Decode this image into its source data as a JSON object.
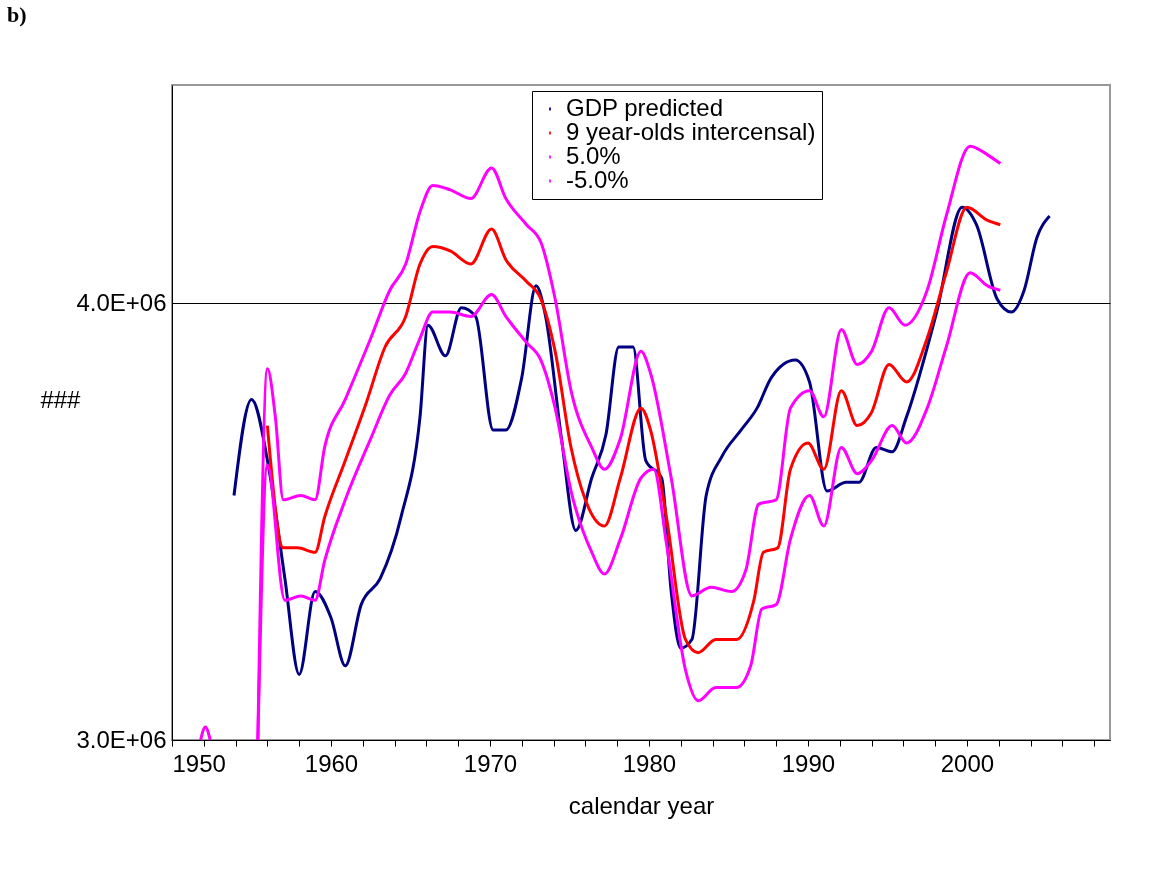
{
  "chart_data": {
    "type": "line",
    "title": "b)",
    "xlabel": "calendar year",
    "ylabel": "###",
    "legend": "top right",
    "grid": "y",
    "xlim": [
      1950,
      2009
    ],
    "xticks": [
      1950,
      {
        "value": 1952,
        "label": null
      },
      {
        "value": 1954,
        "label": null
      },
      {
        "value": 1956,
        "label": null
      },
      {
        "value": 1958,
        "label": null
      },
      1960,
      {
        "value": 1962,
        "label": null
      },
      {
        "value": 1964,
        "label": null
      },
      {
        "value": 1966,
        "label": null
      },
      {
        "value": 1968,
        "label": null
      },
      1970,
      {
        "value": 1972,
        "label": null
      },
      {
        "value": 1974,
        "label": null
      },
      {
        "value": 1976,
        "label": null
      },
      {
        "value": 1978,
        "label": null
      },
      1980,
      {
        "value": 1982,
        "label": null
      },
      {
        "value": 1984,
        "label": null
      },
      {
        "value": 1986,
        "label": null
      },
      {
        "value": 1988,
        "label": null
      },
      1990,
      {
        "value": 1992,
        "label": null
      },
      {
        "value": 1994,
        "label": null
      },
      {
        "value": 1996,
        "label": null
      },
      {
        "value": 1998,
        "label": null
      },
      2000,
      {
        "value": 2002,
        "label": null
      },
      {
        "value": 2004,
        "label": null
      },
      {
        "value": 2006,
        "label": null
      },
      {
        "value": 2008,
        "label": null
      }
    ],
    "ylim": [
      3000000,
      4500000
    ],
    "yticks": [
      {
        "value": 3000000,
        "label": "3.0E+06"
      },
      {
        "value": 4000000,
        "label": "4.0E+06"
      }
    ],
    "series": [
      {
        "name": "GDP predicted",
        "color": "#000080",
        "x": [
          1953.9,
          1955.0,
          1956.1,
          1957.1,
          1958.0,
          1959.0,
          1960.0,
          1960.9,
          1961.9,
          1963.1,
          1964.4,
          1965.6,
          1966.1,
          1967.2,
          1968.2,
          1969.1,
          1970.2,
          1971.0,
          1972.0,
          1972.9,
          1973.5,
          1974.5,
          1975.4,
          1976.4,
          1977.3,
          1978.1,
          1979.0,
          1979.8,
          1980.8,
          1981.4,
          1982.0,
          1982.7,
          1983.6,
          1984.6,
          1985.8,
          1986.8,
          1987.7,
          1989.2,
          1990.1,
          1991.2,
          1992.4,
          1993.2,
          1994.3,
          1995.3,
          1996.2,
          1998.1,
          1999.7,
          2000.6,
          2001.9,
          2002.8,
          2003.6,
          2004.4,
          2005.2
        ],
        "values": [
          3560000,
          3780000,
          3620000,
          3370000,
          3150000,
          3340000,
          3280000,
          3170000,
          3310000,
          3370000,
          3510000,
          3740000,
          3950000,
          3880000,
          3990000,
          3970000,
          3710000,
          3710000,
          3830000,
          4040000,
          3970000,
          3690000,
          3480000,
          3600000,
          3700000,
          3900000,
          3900000,
          3640000,
          3600000,
          3340000,
          3210000,
          3230000,
          3560000,
          3650000,
          3710000,
          3760000,
          3830000,
          3870000,
          3820000,
          3570000,
          3590000,
          3590000,
          3670000,
          3660000,
          3740000,
          3980000,
          4220000,
          4180000,
          4010000,
          3980000,
          4030000,
          4150000,
          4200000
        ]
      },
      {
        "name": " 9 year-olds intercensal)",
        "color": "#ff0000",
        "x": [
          1956.0,
          1957.0,
          1957.9,
          1959.0,
          1959.6,
          1960.9,
          1962.2,
          1963.4,
          1964.7,
          1965.6,
          1966.4,
          1967.5,
          1968.8,
          1970.1,
          1971.0,
          1972.3,
          1973.2,
          1974.1,
          1975.1,
          1976.0,
          1977.2,
          1978.2,
          1979.5,
          1980.1,
          1981.1,
          1982.3,
          1983.1,
          1984.2,
          1985.5,
          1986.6,
          1987.2,
          1988.1,
          1988.9,
          1990.0,
          1991.0,
          1992.1,
          1993.1,
          1994.0,
          1995.1,
          1996.2,
          1997.5,
          1998.7,
          2000.0,
          2001.3,
          2002.1
        ],
        "values": [
          3720000,
          3440000,
          3440000,
          3430000,
          3510000,
          3640000,
          3770000,
          3900000,
          3970000,
          4090000,
          4130000,
          4120000,
          4090000,
          4170000,
          4100000,
          4050000,
          4010000,
          3890000,
          3670000,
          3550000,
          3490000,
          3600000,
          3760000,
          3710000,
          3510000,
          3230000,
          3200000,
          3230000,
          3230000,
          3320000,
          3430000,
          3440000,
          3620000,
          3680000,
          3620000,
          3800000,
          3720000,
          3750000,
          3860000,
          3820000,
          3920000,
          4070000,
          4220000,
          4190000,
          4180000
        ]
      },
      {
        "name": "5.0%",
        "color": "#ff00ff",
        "x": [
          1951.8,
          1952.1,
          1952.4,
          1954.0,
          1955.4,
          1956.0,
          1956.5,
          1957.0,
          1958.1,
          1959.0,
          1959.6,
          1960.9,
          1962.5,
          1963.7,
          1964.7,
          1965.6,
          1966.4,
          1967.5,
          1968.8,
          1970.1,
          1971.0,
          1972.3,
          1973.2,
          1974.1,
          1975.1,
          1976.4,
          1977.2,
          1978.2,
          1979.5,
          1980.1,
          1981.4,
          1982.7,
          1983.9,
          1985.2,
          1986.1,
          1986.9,
          1988.0,
          1988.9,
          1990.1,
          1991.0,
          1992.1,
          1993.1,
          1994.0,
          1995.1,
          1996.1,
          1997.5,
          1998.7,
          2000.2,
          2001.3,
          2002.1
        ],
        "values": [
          3000000,
          3030000,
          3000000,
          null,
          3000000,
          3850000,
          3740000,
          3550000,
          3560000,
          3550000,
          3670000,
          3780000,
          3920000,
          4030000,
          4090000,
          4210000,
          4270000,
          4260000,
          4240000,
          4310000,
          4240000,
          4180000,
          4140000,
          4010000,
          3800000,
          3670000,
          3620000,
          3690000,
          3890000,
          3840000,
          3600000,
          3330000,
          3350000,
          3340000,
          3390000,
          3540000,
          3550000,
          3760000,
          3800000,
          3740000,
          3940000,
          3860000,
          3890000,
          3990000,
          3950000,
          4030000,
          4200000,
          4360000,
          4340000,
          4320000
        ]
      },
      {
        "name": "-5.0%",
        "color": "#ff00ff",
        "x": [
          1955.4,
          1956.0,
          1957.1,
          1958.1,
          1959.0,
          1959.6,
          1960.9,
          1962.5,
          1963.7,
          1964.7,
          1965.6,
          1966.4,
          1967.5,
          1968.8,
          1970.1,
          1971.0,
          1972.3,
          1973.2,
          1974.1,
          1975.1,
          1976.4,
          1977.2,
          1978.2,
          1979.5,
          1980.3,
          1981.1,
          1982.3,
          1983.1,
          1984.2,
          1985.5,
          1986.4,
          1987.1,
          1988.0,
          1988.9,
          1990.1,
          1991.0,
          1992.1,
          1993.1,
          1994.0,
          1995.3,
          1996.2,
          1997.5,
          1998.7,
          2000.2,
          2001.3,
          2002.1
        ],
        "values": [
          3000000,
          3630000,
          3320000,
          3330000,
          3320000,
          3410000,
          3550000,
          3690000,
          3790000,
          3840000,
          3920000,
          3980000,
          3980000,
          3970000,
          4020000,
          3970000,
          3910000,
          3870000,
          3760000,
          3570000,
          3430000,
          3380000,
          3460000,
          3600000,
          3620000,
          3450000,
          3160000,
          3090000,
          3120000,
          3120000,
          3170000,
          3300000,
          3310000,
          3460000,
          3560000,
          3490000,
          3670000,
          3610000,
          3640000,
          3720000,
          3680000,
          3760000,
          3900000,
          4070000,
          4040000,
          4030000
        ]
      }
    ]
  }
}
